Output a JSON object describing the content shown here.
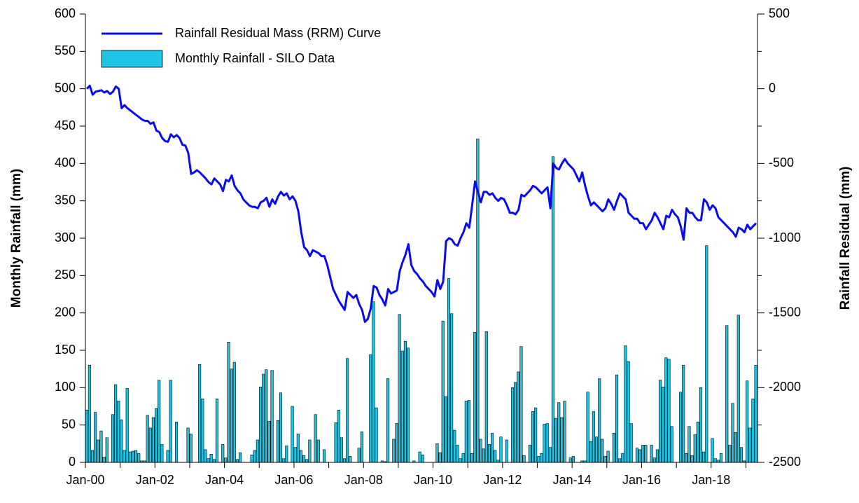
{
  "chart_data": {
    "type": "bar",
    "ylabel": "Monthly Rainfall (mm)",
    "y2label": "Rainfall Residual (mm)",
    "ylim": [
      0,
      600
    ],
    "yticks": [
      0,
      50,
      100,
      150,
      200,
      250,
      300,
      350,
      400,
      450,
      500,
      550,
      600
    ],
    "y2lim": [
      -2500,
      500
    ],
    "y2ticks": [
      -2500,
      -2000,
      -1500,
      -1000,
      -500,
      0,
      500
    ],
    "legend": "upper left",
    "categories": [
      "Jan-00",
      null,
      null,
      null,
      null,
      null,
      null,
      null,
      null,
      null,
      null,
      null,
      null,
      null,
      null,
      null,
      null,
      null,
      null,
      null,
      null,
      null,
      null,
      null,
      "Jan-02",
      null,
      null,
      null,
      null,
      null,
      null,
      null,
      null,
      null,
      null,
      null,
      null,
      null,
      null,
      null,
      null,
      null,
      null,
      null,
      null,
      null,
      null,
      null,
      "Jan-04",
      null,
      null,
      null,
      null,
      null,
      null,
      null,
      null,
      null,
      null,
      null,
      null,
      null,
      null,
      null,
      null,
      null,
      null,
      null,
      null,
      null,
      null,
      null,
      "Jan-06",
      null,
      null,
      null,
      null,
      null,
      null,
      null,
      null,
      null,
      null,
      null,
      null,
      null,
      null,
      null,
      null,
      null,
      null,
      null,
      null,
      null,
      null,
      null,
      "Jan-08",
      null,
      null,
      null,
      null,
      null,
      null,
      null,
      null,
      null,
      null,
      null,
      null,
      null,
      null,
      null,
      null,
      null,
      null,
      null,
      null,
      null,
      null,
      null,
      "Jan-10",
      null,
      null,
      null,
      null,
      null,
      null,
      null,
      null,
      null,
      null,
      null,
      null,
      null,
      null,
      null,
      null,
      null,
      null,
      null,
      null,
      null,
      null,
      null,
      "Jan-12",
      null,
      null,
      null,
      null,
      null,
      null,
      null,
      null,
      null,
      null,
      null,
      null,
      null,
      null,
      null,
      null,
      null,
      null,
      null,
      null,
      null,
      null,
      null,
      "Jan-14",
      null,
      null,
      null,
      null,
      null,
      null,
      null,
      null,
      null,
      null,
      null,
      null,
      null,
      null,
      null,
      null,
      null,
      null,
      null,
      null,
      null,
      null,
      null,
      "Jan-16",
      null,
      null,
      null,
      null,
      null,
      null,
      null,
      null,
      null,
      null,
      null,
      null,
      null,
      null,
      null,
      null,
      null,
      null,
      null,
      null,
      null,
      null,
      null,
      "Jan-18",
      null,
      null,
      null,
      null,
      null,
      null,
      null,
      null,
      null,
      null,
      null,
      null,
      null,
      null,
      null
    ],
    "series": [
      {
        "name": "Rainfall Residual Mass (RRM) Curve",
        "type": "line",
        "axis": "y2",
        "color": "#0a0aee",
        "values": [
          0,
          20,
          -40,
          -20,
          -15,
          -10,
          -25,
          -15,
          -35,
          -20,
          15,
          0,
          -130,
          -110,
          -130,
          -145,
          -160,
          -175,
          -190,
          -205,
          -215,
          -215,
          -235,
          -225,
          -280,
          -290,
          -330,
          -350,
          -355,
          -305,
          -325,
          -310,
          -330,
          -375,
          -380,
          -430,
          -570,
          -560,
          -545,
          -560,
          -580,
          -600,
          -625,
          -640,
          -600,
          -620,
          -640,
          -685,
          -610,
          -620,
          -580,
          -650,
          -680,
          -700,
          -740,
          -760,
          -780,
          -790,
          -790,
          -800,
          -760,
          -750,
          -730,
          -790,
          -740,
          -770,
          -720,
          -690,
          -715,
          -700,
          -740,
          -720,
          -750,
          -820,
          -960,
          -1060,
          -1080,
          -1120,
          -1080,
          -1090,
          -1100,
          -1120,
          -1120,
          -1180,
          -1260,
          -1340,
          -1380,
          -1420,
          -1450,
          -1480,
          -1360,
          -1380,
          -1400,
          -1380,
          -1440,
          -1480,
          -1560,
          -1540,
          -1470,
          -1320,
          -1330,
          -1380,
          -1410,
          -1450,
          -1340,
          -1370,
          -1360,
          -1350,
          -1220,
          -1160,
          -1110,
          -1040,
          -1180,
          -1220,
          -1240,
          -1270,
          -1290,
          -1320,
          -1340,
          -1360,
          -1390,
          -1280,
          -1340,
          -1290,
          -1020,
          -1000,
          -1010,
          -1040,
          -1050,
          -1000,
          -960,
          -900,
          -930,
          -780,
          -620,
          -690,
          -760,
          -690,
          -690,
          -710,
          -700,
          -730,
          -750,
          -730,
          -740,
          -780,
          -830,
          -830,
          -840,
          -810,
          -710,
          -720,
          -700,
          -680,
          -650,
          -660,
          -680,
          -700,
          -680,
          -660,
          -800,
          -500,
          -530,
          -540,
          -500,
          -470,
          -500,
          -520,
          -540,
          -580,
          -620,
          -560,
          -650,
          -720,
          -780,
          -760,
          -780,
          -800,
          -820,
          -800,
          -740,
          -770,
          -810,
          -750,
          -700,
          -720,
          -740,
          -830,
          -850,
          -870,
          -870,
          -900,
          -900,
          -940,
          -910,
          -880,
          -830,
          -860,
          -900,
          -940,
          -850,
          -860,
          -810,
          -840,
          -860,
          -920,
          -1010,
          -800,
          -830,
          -830,
          -860,
          -880,
          -880,
          -740,
          -760,
          -810,
          -780,
          -800,
          -860,
          -880,
          -900,
          -920,
          -940,
          -960,
          -990,
          -930,
          -940,
          -960,
          -910,
          -940,
          -920,
          -900
        ]
      },
      {
        "name": "Monthly Rainfall - SILO Data",
        "type": "bar",
        "color": "#1ec4e4",
        "values": [
          70,
          130,
          16,
          67,
          30,
          42,
          7,
          33,
          0,
          64,
          104,
          82,
          57,
          16,
          99,
          14,
          15,
          16,
          12,
          2,
          2,
          63,
          46,
          60,
          72,
          110,
          24,
          0,
          16,
          110,
          0,
          54,
          0,
          0,
          0,
          46,
          38,
          0,
          0,
          131,
          85,
          17,
          5,
          11,
          4,
          85,
          0,
          24,
          6,
          161,
          125,
          134,
          4,
          13,
          0,
          0,
          0,
          10,
          16,
          30,
          101,
          118,
          124,
          55,
          123,
          0,
          56,
          93,
          5,
          22,
          0,
          75,
          20,
          38,
          16,
          9,
          4,
          30,
          0,
          64,
          30,
          0,
          17,
          0,
          0,
          0,
          53,
          70,
          33,
          5,
          139,
          8,
          0,
          0,
          19,
          41,
          0,
          0,
          144,
          215,
          73,
          0,
          2,
          1,
          112,
          0,
          31,
          52,
          198,
          149,
          162,
          153,
          0,
          2,
          0,
          14,
          10,
          0,
          0,
          0,
          0,
          25,
          13,
          189,
          88,
          246,
          199,
          43,
          23,
          5,
          12,
          82,
          83,
          12,
          174,
          433,
          31,
          18,
          175,
          24,
          39,
          16,
          3,
          34,
          0,
          30,
          0,
          100,
          107,
          121,
          155,
          9,
          0,
          23,
          68,
          73,
          8,
          12,
          51,
          52,
          20,
          409,
          59,
          80,
          60,
          82,
          0,
          6,
          8,
          0,
          0,
          2,
          2,
          94,
          28,
          68,
          34,
          112,
          31,
          8,
          15,
          0,
          39,
          117,
          5,
          12,
          156,
          135,
          52,
          0,
          19,
          17,
          23,
          23,
          0,
          23,
          6,
          17,
          110,
          101,
          140,
          138,
          48,
          0,
          0,
          94,
          130,
          12,
          48,
          9,
          37,
          54,
          100,
          14,
          290,
          0,
          32,
          5,
          3,
          12,
          0,
          183,
          23,
          79,
          40,
          197,
          20,
          2,
          109,
          46,
          85,
          130
        ]
      }
    ]
  }
}
